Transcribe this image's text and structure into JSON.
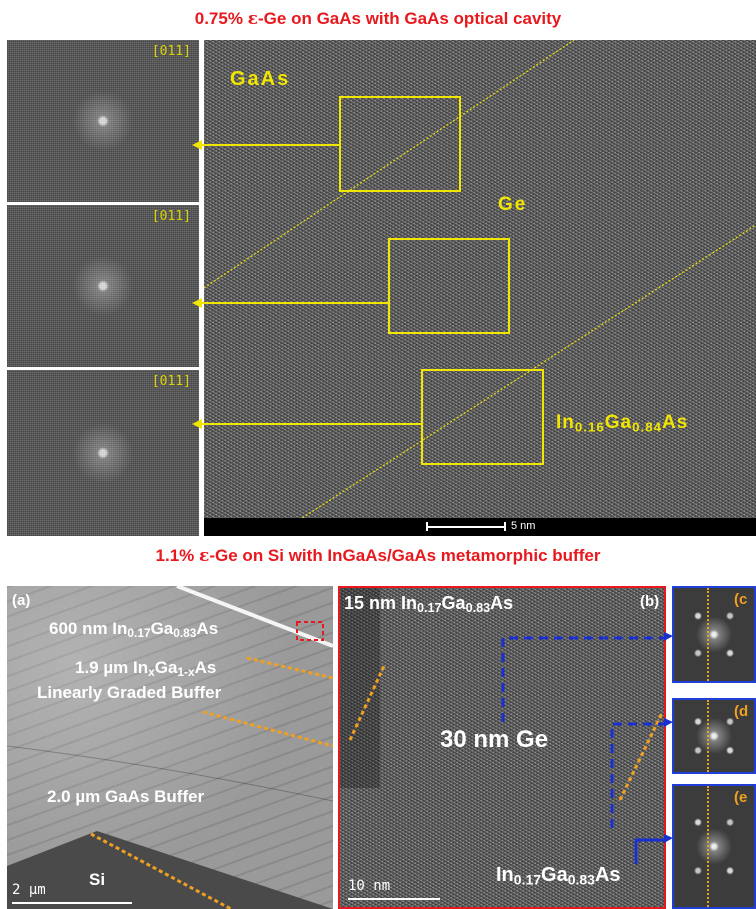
{
  "top": {
    "title_prefix": "0.75% ",
    "title_epsilon": "ε",
    "title_suffix": "-Ge on GaAs with GaAs optical cavity",
    "fft_labels": [
      "[011]",
      "[011]",
      "[011]"
    ],
    "label_gaas": "GaAs",
    "label_ge": "Ge",
    "label_ingaas_base": "In",
    "label_ingaas_sub1": "0.16",
    "label_ingaas_mid": "Ga",
    "label_ingaas_sub2": "0.84",
    "label_ingaas_end": "As",
    "scale_label": "5 nm"
  },
  "bottom": {
    "title_prefix": "1.1% ",
    "title_epsilon": "ε",
    "title_suffix": "-Ge on Si with InGaAs/GaAs metamorphic buffer",
    "panel_a": {
      "label": "(a)",
      "layer1_prefix": "600 nm In",
      "layer1_sub1": "0.17",
      "layer1_mid": "Ga",
      "layer1_sub2": "0.83",
      "layer1_end": "As",
      "layer2_prefix": "1.9 µm In",
      "layer2_sub1": "x",
      "layer2_mid": "Ga",
      "layer2_sub2": "1-x",
      "layer2_end": "As",
      "layer2_line2": "Linearly Graded Buffer",
      "layer3": "2.0 µm GaAs Buffer",
      "substrate": "Si",
      "scale_label": "2 µm"
    },
    "panel_b": {
      "label": "(b)",
      "top_prefix": "15 nm In",
      "top_sub1": "0.17",
      "top_mid": "Ga",
      "top_sub2": "0.83",
      "top_end": "As",
      "middle": "30 nm Ge",
      "bottom_prefix": "In",
      "bottom_sub1": "0.17",
      "bottom_mid": "Ga",
      "bottom_sub2": "0.83",
      "bottom_end": "As",
      "scale_label": "10 nm"
    },
    "panel_c_label": "(c",
    "panel_d_label": "(d",
    "panel_e_label": "(e"
  },
  "colors": {
    "title_red": "#e8191e",
    "annotation_yellow": "#f0e600",
    "frame_red": "#e8191e",
    "frame_blue": "#1f3fd8",
    "dashed_orange": "#f0a020",
    "dashed_blue": "#1a2fd0"
  }
}
